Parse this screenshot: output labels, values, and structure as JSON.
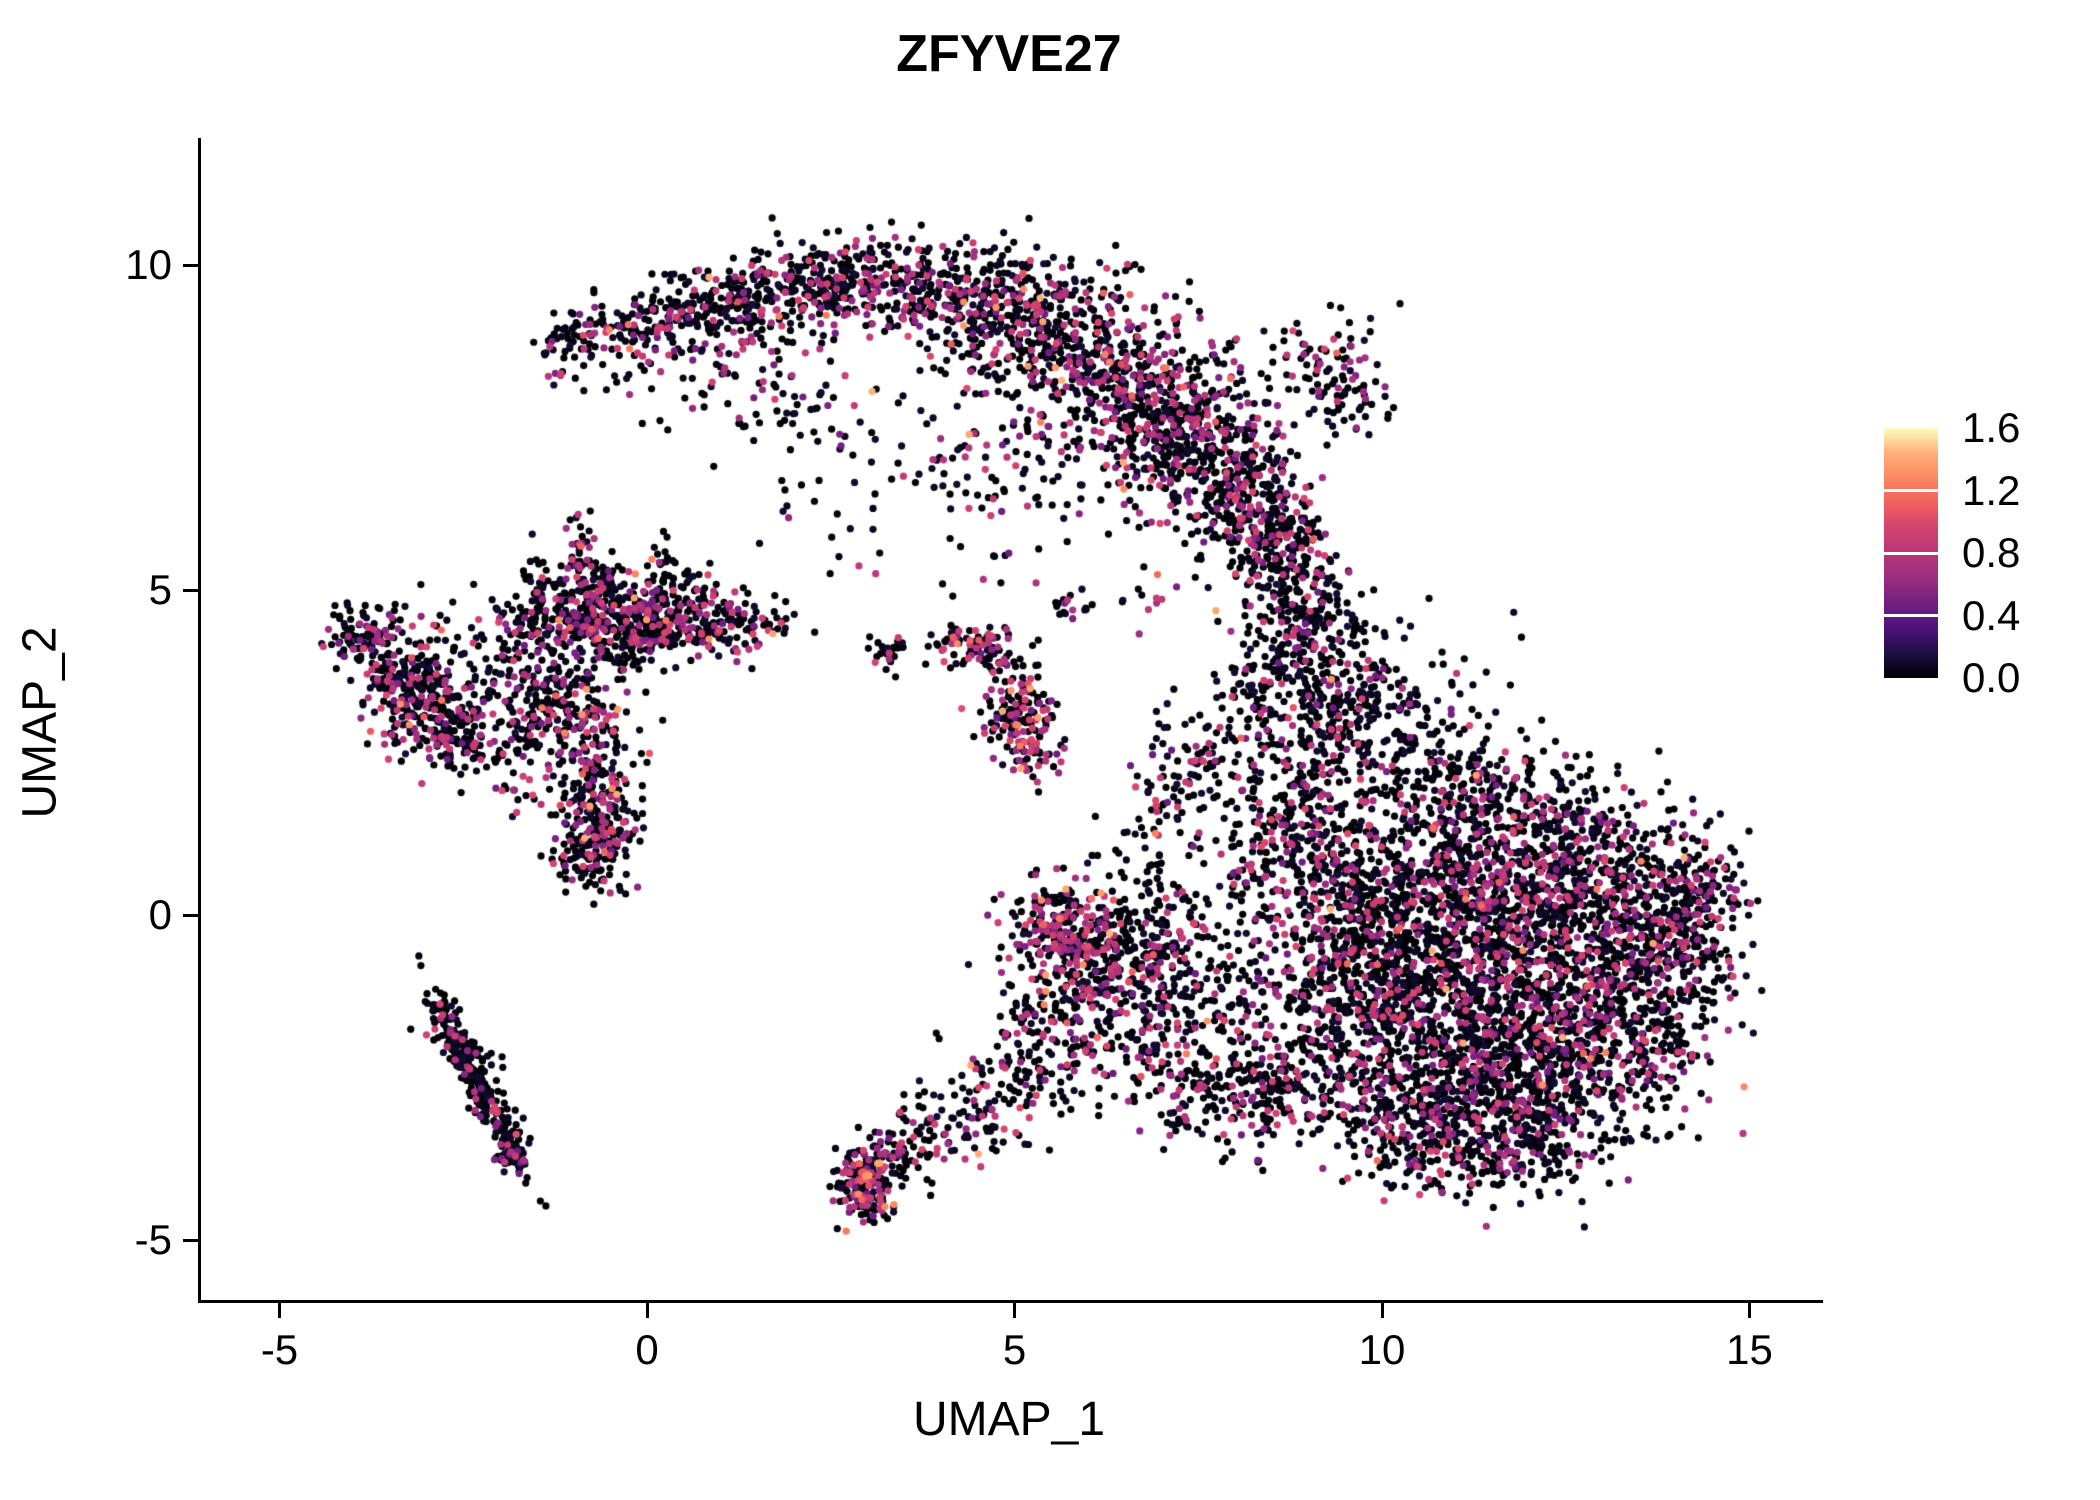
{
  "title": "ZFYVE27",
  "axes": {
    "x_label": "UMAP_1",
    "y_label": "UMAP_2"
  },
  "colors": {
    "background": "#ffffff",
    "axis": "#000000",
    "text": "#000000"
  },
  "chart_data": {
    "type": "scatter",
    "title": "ZFYVE27",
    "xlabel": "UMAP_1",
    "ylabel": "UMAP_2",
    "xlim": [
      -6.1,
      15.9
    ],
    "ylim": [
      -5.9,
      11.9
    ],
    "x_ticks": [
      -5,
      0,
      5,
      10,
      15
    ],
    "y_ticks": [
      -5,
      0,
      5,
      10
    ],
    "grid": false,
    "legend": {
      "position": "right",
      "min": 0.0,
      "max": 1.6,
      "ticks": [
        1.6,
        1.2,
        0.8,
        0.4,
        0.0
      ]
    },
    "colormap": "magma",
    "colormap_stops": [
      [
        0.0,
        "#000004"
      ],
      [
        0.1,
        "#1C1044"
      ],
      [
        0.2,
        "#4F127B"
      ],
      [
        0.3,
        "#721F81"
      ],
      [
        0.4,
        "#9C2E7F"
      ],
      [
        0.5,
        "#B73779"
      ],
      [
        0.6,
        "#D3426E"
      ],
      [
        0.7,
        "#F1605D"
      ],
      [
        0.8,
        "#FB8861"
      ],
      [
        0.9,
        "#FEB078"
      ],
      [
        1.0,
        "#FCFDBF"
      ]
    ],
    "point_radius_px": 3.6,
    "seed": 1234,
    "cluster_format": [
      "center_x",
      "center_y",
      "sd_x",
      "sd_y",
      "rot_deg",
      "n_points",
      "frac_expressing",
      "frac_high_expr"
    ],
    "clusters": [
      [
        -1.15,
        8.7,
        0.22,
        0.28,
        0,
        40,
        0.25,
        0.04
      ],
      [
        -0.5,
        8.95,
        0.3,
        0.3,
        0,
        70,
        0.3,
        0.05
      ],
      [
        0.3,
        9.2,
        0.35,
        0.3,
        0,
        105,
        0.3,
        0.05
      ],
      [
        1.2,
        9.45,
        0.45,
        0.3,
        0,
        130,
        0.3,
        0.05
      ],
      [
        2.2,
        9.7,
        0.5,
        0.35,
        0,
        160,
        0.28,
        0.05
      ],
      [
        3.2,
        9.8,
        0.55,
        0.38,
        0,
        175,
        0.28,
        0.05
      ],
      [
        4.2,
        9.55,
        0.55,
        0.45,
        0,
        185,
        0.28,
        0.05
      ],
      [
        5.1,
        9.1,
        0.6,
        0.5,
        0,
        210,
        0.3,
        0.05
      ],
      [
        5.9,
        8.6,
        0.65,
        0.6,
        0,
        255,
        0.3,
        0.06
      ],
      [
        6.7,
        8.0,
        0.7,
        0.65,
        0,
        305,
        0.3,
        0.06
      ],
      [
        7.4,
        7.3,
        0.6,
        0.6,
        0,
        280,
        0.28,
        0.05
      ],
      [
        8.0,
        6.6,
        0.5,
        0.55,
        0,
        225,
        0.25,
        0.05
      ],
      [
        8.5,
        5.9,
        0.4,
        0.5,
        0,
        150,
        0.22,
        0.05
      ],
      [
        8.8,
        5.2,
        0.32,
        0.45,
        0,
        95,
        0.2,
        0.04
      ],
      [
        9.3,
        8.55,
        0.3,
        0.35,
        0,
        65,
        0.25,
        0.05
      ],
      [
        9.55,
        7.9,
        0.25,
        0.3,
        0,
        40,
        0.2,
        0.05
      ],
      [
        1.0,
        8.4,
        0.6,
        0.5,
        0,
        60,
        0.25,
        0.05
      ],
      [
        2.0,
        7.8,
        0.7,
        0.5,
        0,
        45,
        0.25,
        0.05
      ],
      [
        3.2,
        7.1,
        0.8,
        0.5,
        0,
        35,
        0.2,
        0.05
      ],
      [
        4.3,
        6.7,
        0.7,
        0.45,
        0,
        30,
        0.2,
        0.05
      ],
      [
        5.4,
        6.9,
        0.6,
        0.5,
        0,
        40,
        0.2,
        0.05
      ],
      [
        2.6,
        6.2,
        0.5,
        0.35,
        0,
        12,
        0.2,
        0
      ],
      [
        9.0,
        4.6,
        0.35,
        0.5,
        0,
        100,
        0.18,
        0.03
      ],
      [
        9.15,
        3.8,
        0.45,
        0.5,
        0,
        120,
        0.18,
        0.03
      ],
      [
        9.3,
        3.0,
        0.55,
        0.5,
        0,
        150,
        0.18,
        0.03
      ],
      [
        10.2,
        3.2,
        0.7,
        0.6,
        0,
        110,
        0.15,
        0.02
      ],
      [
        10.9,
        2.4,
        0.7,
        0.5,
        0,
        100,
        0.15,
        0.02
      ],
      [
        8.3,
        3.6,
        0.4,
        0.5,
        0,
        60,
        0.15,
        0.02
      ],
      [
        8.1,
        2.4,
        0.45,
        0.55,
        0,
        70,
        0.15,
        0.02
      ],
      [
        8.6,
        1.5,
        0.5,
        0.5,
        0,
        90,
        0.18,
        0.03
      ],
      [
        10.2,
        0.6,
        0.7,
        0.8,
        0,
        260,
        0.22,
        0.03
      ],
      [
        11.2,
        0.8,
        0.8,
        0.7,
        0,
        300,
        0.22,
        0.03
      ],
      [
        12.3,
        0.7,
        0.8,
        0.7,
        0,
        300,
        0.22,
        0.03
      ],
      [
        13.3,
        0.3,
        0.7,
        0.7,
        0,
        260,
        0.22,
        0.03
      ],
      [
        14.0,
        -0.1,
        0.45,
        0.6,
        0,
        150,
        0.22,
        0.03
      ],
      [
        14.35,
        0.45,
        0.25,
        0.4,
        0,
        70,
        0.3,
        0.06
      ],
      [
        10.5,
        -0.7,
        0.8,
        0.7,
        0,
        300,
        0.22,
        0.03
      ],
      [
        11.6,
        -0.8,
        0.9,
        0.8,
        0,
        340,
        0.22,
        0.03
      ],
      [
        12.7,
        -1.0,
        0.8,
        0.8,
        0,
        310,
        0.22,
        0.03
      ],
      [
        13.6,
        -1.2,
        0.6,
        0.7,
        0,
        210,
        0.22,
        0.03
      ],
      [
        10.8,
        -2.0,
        0.8,
        0.7,
        0,
        280,
        0.22,
        0.03
      ],
      [
        11.9,
        -2.2,
        0.9,
        0.7,
        0,
        300,
        0.22,
        0.03
      ],
      [
        12.9,
        -2.4,
        0.7,
        0.6,
        0,
        220,
        0.22,
        0.03
      ],
      [
        11.3,
        -3.1,
        0.8,
        0.5,
        0,
        190,
        0.2,
        0.03
      ],
      [
        12.2,
        -3.3,
        0.6,
        0.45,
        0,
        150,
        0.2,
        0.03
      ],
      [
        10.2,
        -3.0,
        0.5,
        0.5,
        0,
        110,
        0.2,
        0.03
      ],
      [
        9.6,
        -1.8,
        0.5,
        0.8,
        0,
        150,
        0.22,
        0.03
      ],
      [
        9.5,
        -0.5,
        0.5,
        0.7,
        0,
        150,
        0.22,
        0.03
      ],
      [
        10.7,
        1.8,
        0.8,
        0.4,
        0,
        90,
        0.2,
        0.03
      ],
      [
        12.0,
        1.7,
        0.8,
        0.4,
        0,
        80,
        0.2,
        0.03
      ],
      [
        10.5,
        -3.7,
        0.4,
        0.3,
        0,
        60,
        0.2,
        0.03
      ],
      [
        11.6,
        -3.8,
        0.4,
        0.3,
        0,
        55,
        0.2,
        0.03
      ],
      [
        -4.15,
        4.35,
        0.15,
        0.15,
        0,
        15,
        0.2,
        0
      ],
      [
        -3.7,
        4.15,
        0.3,
        0.35,
        0,
        130,
        0.25,
        0.06
      ],
      [
        -3.2,
        3.6,
        0.25,
        0.3,
        0,
        90,
        0.25,
        0.06
      ],
      [
        -3.0,
        3.1,
        0.35,
        0.35,
        0,
        160,
        0.3,
        0.12
      ],
      [
        -2.5,
        2.7,
        0.3,
        0.25,
        0,
        90,
        0.25,
        0.06
      ],
      [
        -2.2,
        3.9,
        0.5,
        0.5,
        0,
        80,
        0.2,
        0.04
      ],
      [
        -1.6,
        2.6,
        0.5,
        0.6,
        0,
        90,
        0.2,
        0.04
      ],
      [
        -1.3,
        3.3,
        0.3,
        0.4,
        0,
        120,
        0.25,
        0.05
      ],
      [
        -1.2,
        4.55,
        0.45,
        0.35,
        0,
        180,
        0.25,
        0.05
      ],
      [
        -0.4,
        4.45,
        0.4,
        0.35,
        0,
        200,
        0.3,
        0.06
      ],
      [
        0.3,
        4.55,
        0.35,
        0.3,
        0,
        140,
        0.25,
        0.05
      ],
      [
        1.0,
        4.4,
        0.35,
        0.25,
        0,
        90,
        0.25,
        0.05
      ],
      [
        1.55,
        4.5,
        0.2,
        0.15,
        0,
        25,
        0.2,
        0
      ],
      [
        -0.9,
        5.45,
        0.13,
        0.38,
        0,
        50,
        0.25,
        0.05
      ],
      [
        -0.55,
        5.1,
        0.1,
        0.3,
        0,
        35,
        0.25,
        0.05
      ],
      [
        0.2,
        5.3,
        0.1,
        0.33,
        0,
        30,
        0.2,
        0.05
      ],
      [
        0.6,
        5.0,
        0.12,
        0.25,
        0,
        25,
        0.2,
        0.05
      ],
      [
        -1.5,
        5.2,
        0.12,
        0.3,
        0,
        25,
        0.2,
        0.05
      ],
      [
        -0.75,
        2.5,
        0.3,
        0.5,
        0,
        160,
        0.35,
        0.1
      ],
      [
        -0.55,
        1.4,
        0.25,
        0.45,
        0,
        160,
        0.3,
        0.08
      ],
      [
        -0.9,
        0.9,
        0.2,
        0.2,
        0,
        60,
        0.25,
        0.06
      ],
      [
        3.3,
        4.05,
        0.12,
        0.12,
        0,
        25,
        0.3,
        0.08
      ],
      [
        4.35,
        4.15,
        0.3,
        0.17,
        0,
        70,
        0.35,
        0.15
      ],
      [
        4.8,
        3.9,
        0.15,
        0.12,
        0,
        25,
        0.3,
        0.1
      ],
      [
        5.05,
        3.15,
        0.22,
        0.3,
        0,
        110,
        0.5,
        0.15
      ],
      [
        5.3,
        2.6,
        0.18,
        0.25,
        0,
        60,
        0.5,
        0.15
      ],
      [
        5.75,
        4.75,
        0.15,
        0.12,
        0,
        18,
        0.25,
        0
      ],
      [
        4.6,
        5.4,
        1.0,
        0.4,
        0,
        18,
        0.2,
        0
      ],
      [
        6.8,
        5.0,
        0.3,
        0.3,
        0,
        12,
        0.2,
        0
      ],
      [
        -2.3,
        -2.6,
        0.75,
        0.09,
        -66,
        220,
        0.15,
        0.03
      ],
      [
        -2.55,
        -2.0,
        0.28,
        0.07,
        -25,
        45,
        0.15,
        0.03
      ],
      [
        -1.85,
        -3.55,
        0.13,
        0.2,
        0,
        55,
        0.2,
        0.04
      ],
      [
        -2.8,
        -1.45,
        0.12,
        0.12,
        0,
        20,
        0.15,
        0
      ],
      [
        2.95,
        -4.15,
        0.22,
        0.3,
        0,
        170,
        0.45,
        0.25
      ],
      [
        3.4,
        -3.7,
        0.38,
        0.22,
        30,
        90,
        0.3,
        0.1
      ],
      [
        4.2,
        -3.2,
        0.5,
        0.35,
        0,
        70,
        0.2,
        0.05
      ],
      [
        5.0,
        -2.6,
        0.5,
        0.5,
        0,
        80,
        0.22,
        0.05
      ],
      [
        5.6,
        -1.8,
        0.5,
        0.6,
        0,
        110,
        0.25,
        0.06
      ],
      [
        5.9,
        -0.9,
        0.45,
        0.55,
        0,
        140,
        0.35,
        0.1
      ],
      [
        5.6,
        -0.2,
        0.35,
        0.4,
        0,
        150,
        0.4,
        0.12
      ],
      [
        6.3,
        -0.3,
        0.4,
        0.5,
        0,
        120,
        0.3,
        0.08
      ],
      [
        6.6,
        -1.3,
        0.5,
        0.6,
        0,
        100,
        0.25,
        0.05
      ],
      [
        7.2,
        -2.0,
        0.5,
        0.5,
        0,
        80,
        0.2,
        0.04
      ],
      [
        7.6,
        -2.7,
        0.45,
        0.4,
        0,
        70,
        0.2,
        0.04
      ],
      [
        8.3,
        -2.9,
        0.5,
        0.5,
        0,
        90,
        0.2,
        0.04
      ],
      [
        8.9,
        -2.5,
        0.5,
        0.6,
        0,
        120,
        0.2,
        0.04
      ],
      [
        7.0,
        -0.6,
        0.5,
        0.6,
        0,
        90,
        0.25,
        0.05
      ],
      [
        7.8,
        -1.2,
        0.5,
        0.6,
        0,
        90,
        0.22,
        0.05
      ],
      [
        6.9,
        0.6,
        0.25,
        0.8,
        0,
        60,
        0.2,
        0.05
      ],
      [
        7.1,
        1.8,
        0.3,
        0.5,
        0,
        40,
        0.25,
        0.05
      ],
      [
        7.5,
        2.4,
        0.2,
        0.2,
        0,
        25,
        0.3,
        0.05
      ],
      [
        8.4,
        0.3,
        0.5,
        0.8,
        0,
        100,
        0.22,
        0.04
      ],
      [
        9.0,
        0.9,
        0.4,
        0.7,
        0,
        110,
        0.22,
        0.04
      ]
    ]
  }
}
